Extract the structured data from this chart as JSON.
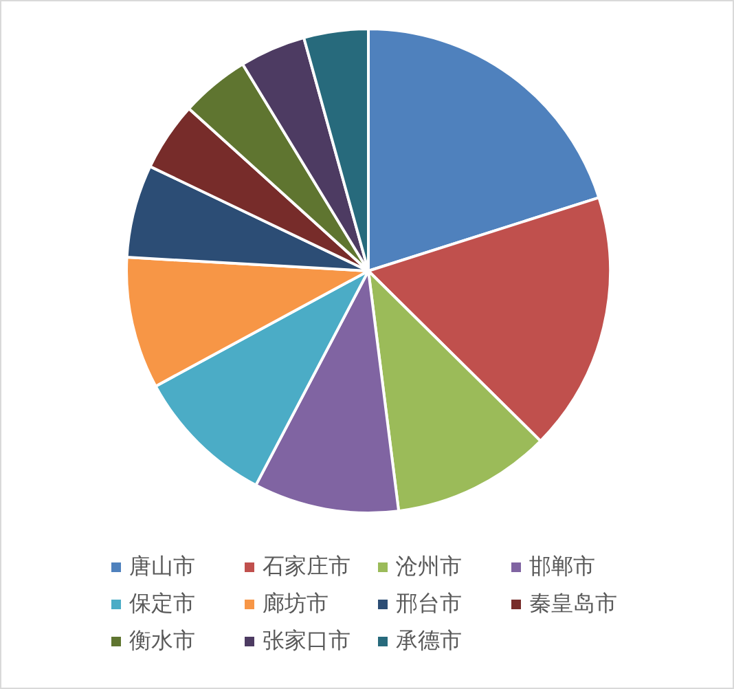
{
  "chart_data": {
    "type": "pie",
    "categories": [
      "唐山市",
      "石家庄市",
      "沧州市",
      "邯郸市",
      "保定市",
      "廊坊市",
      "邢台市",
      "秦皇岛市",
      "衡水市",
      "张家口市",
      "承德市"
    ],
    "values": [
      20.1,
      17.3,
      10.6,
      9.7,
      9.4,
      8.8,
      6.2,
      4.6,
      4.6,
      4.4,
      4.3
    ],
    "colors": [
      "#4f81bd",
      "#c0504d",
      "#9bbb59",
      "#8064a2",
      "#4bacc6",
      "#f79646",
      "#2c4d75",
      "#772c2a",
      "#5f7530",
      "#4d3b62",
      "#276a7c"
    ],
    "legend": "bottom"
  }
}
